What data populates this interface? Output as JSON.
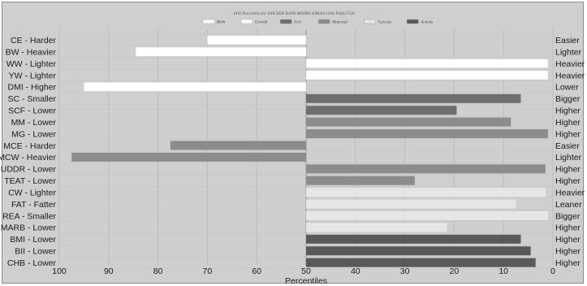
{
  "chart_data": {
    "type": "bar",
    "orientation": "horizontal",
    "title": "EPD Percentiles for THICKER B2496 MOHRS 36BLR4 (184) P44617558",
    "xlabel": "Percentiles",
    "xlim": [
      100,
      0
    ],
    "x_ticks": [
      100,
      90,
      80,
      70,
      60,
      50,
      40,
      30,
      20,
      10,
      0
    ],
    "center": 50,
    "legend": [
      {
        "name": "Birth",
        "color": "#ffffff"
      },
      {
        "name": "Growth",
        "color": "#ffffff"
      },
      {
        "name": "Fert",
        "color": "#6e6e6e"
      },
      {
        "name": "Maternal",
        "color": "#8c8c8c"
      },
      {
        "name": "Carcass",
        "color": "#e6e6e6"
      },
      {
        "name": "Actions",
        "color": "#595959"
      }
    ],
    "legend_position": "top-center",
    "grid": true,
    "rows": [
      {
        "left": "CE - Harder",
        "right": "Easier",
        "value": 70,
        "group": "Birth"
      },
      {
        "left": "BW - Heavier",
        "right": "Lighter",
        "value": 84.5,
        "group": "Birth"
      },
      {
        "left": "WW - Lighter",
        "right": "Heavier",
        "value": 1,
        "group": "Growth"
      },
      {
        "left": "YW - Lighter",
        "right": "Heavier",
        "value": 1,
        "group": "Growth"
      },
      {
        "left": "DMI - Higher",
        "right": "Lower",
        "value": 95,
        "group": "Growth"
      },
      {
        "left": "SC - Smaller",
        "right": "Bigger",
        "value": 6.5,
        "group": "Fert"
      },
      {
        "left": "SCF - Lower",
        "right": "Higher",
        "value": 19.5,
        "group": "Fert"
      },
      {
        "left": "MM - Lower",
        "right": "Higher",
        "value": 8.5,
        "group": "Maternal"
      },
      {
        "left": "MG - Lower",
        "right": "Higher",
        "value": 1,
        "group": "Maternal"
      },
      {
        "left": "MCE - Harder",
        "right": "Easier",
        "value": 77.5,
        "group": "Maternal"
      },
      {
        "left": "MCW - Heavier",
        "right": "Lighter",
        "value": 97.5,
        "group": "Maternal"
      },
      {
        "left": "UDDR - Lower",
        "right": "Higher",
        "value": 1.5,
        "group": "Maternal"
      },
      {
        "left": "TEAT - Lower",
        "right": "Higher",
        "value": 28,
        "group": "Maternal"
      },
      {
        "left": "CW - Lighter",
        "right": "Heavier",
        "value": 1.5,
        "group": "Carcass"
      },
      {
        "left": "FAT - Fatter",
        "right": "Leaner",
        "value": 7.5,
        "group": "Carcass"
      },
      {
        "left": "REA - Smaller",
        "right": "Bigger",
        "value": 1,
        "group": "Carcass"
      },
      {
        "left": "MARB - Lower",
        "right": "Higher",
        "value": 21.5,
        "group": "Carcass"
      },
      {
        "left": "BMI - Lower",
        "right": "Higher",
        "value": 6.5,
        "group": "Actions"
      },
      {
        "left": "BII - Lower",
        "right": "Higher",
        "value": 4.5,
        "group": "Actions"
      },
      {
        "left": "CHB - Lower",
        "right": "Higher",
        "value": 3.5,
        "group": "Actions"
      }
    ]
  }
}
